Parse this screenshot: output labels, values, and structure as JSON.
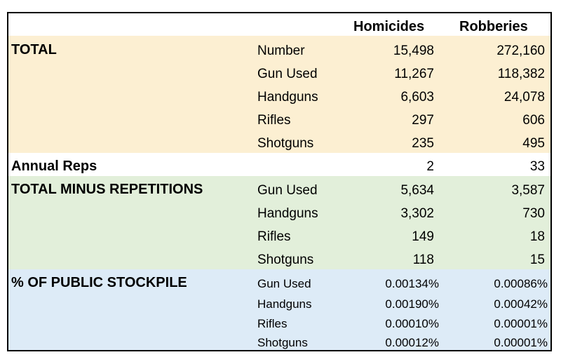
{
  "header": {
    "col1": "Homicides",
    "col2": "Robberies"
  },
  "sections": {
    "total": {
      "title": "TOTAL",
      "rows": [
        {
          "label": "Number",
          "homicides": "15,498",
          "robberies": "272,160"
        },
        {
          "label": "Gun Used",
          "homicides": "11,267",
          "robberies": "118,382"
        },
        {
          "label": "Handguns",
          "homicides": "6,603",
          "robberies": "24,078"
        },
        {
          "label": "Rifles",
          "homicides": "297",
          "robberies": "606"
        },
        {
          "label": "Shotguns",
          "homicides": "235",
          "robberies": "495"
        }
      ]
    },
    "annual": {
      "title": "Annual Reps",
      "homicides": "2",
      "robberies": "33"
    },
    "minus": {
      "title": "TOTAL MINUS REPETITIONS",
      "rows": [
        {
          "label": "Gun Used",
          "homicides": "5,634",
          "robberies": "3,587"
        },
        {
          "label": "Handguns",
          "homicides": "3,302",
          "robberies": "730"
        },
        {
          "label": "Rifles",
          "homicides": "149",
          "robberies": "18"
        },
        {
          "label": "Shotguns",
          "homicides": "118",
          "robberies": "15"
        }
      ]
    },
    "pct": {
      "title": "% OF PUBLIC STOCKPILE",
      "rows": [
        {
          "label": "Gun Used",
          "homicides": "0.00134%",
          "robberies": "0.00086%"
        },
        {
          "label": "Handguns",
          "homicides": "0.00190%",
          "robberies": "0.00042%"
        },
        {
          "label": "Rifles",
          "homicides": "0.00010%",
          "robberies": "0.00001%"
        },
        {
          "label": "Shotguns",
          "homicides": "0.00012%",
          "robberies": "0.00001%"
        }
      ]
    }
  },
  "colors": {
    "total_band": "#fcefd2",
    "minus_band": "#e2efda",
    "pct_band": "#ddebf7"
  }
}
